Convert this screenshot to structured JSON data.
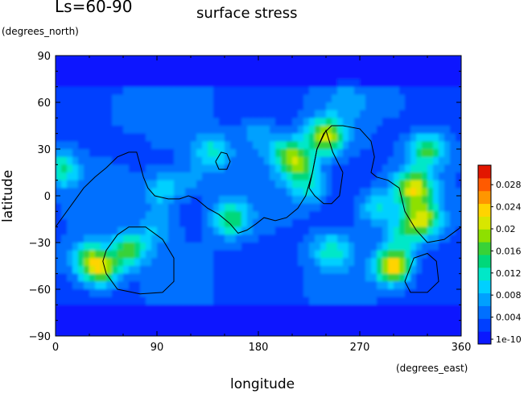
{
  "chart_data": {
    "type": "heatmap",
    "title": "surface stress",
    "period_label": "Ls=60-90",
    "xlabel": "longitude",
    "xunits": "(degrees_east)",
    "ylabel": "latitude",
    "yunits": "(degrees_north)",
    "xlim": [
      0,
      360
    ],
    "ylim": [
      -90,
      90
    ],
    "xticks": [
      0,
      90,
      180,
      270,
      360
    ],
    "yticks": [
      90,
      60,
      30,
      0,
      -30,
      -60,
      -90
    ],
    "colorbar": {
      "ticks": [
        "1e-10",
        "0.004",
        "0.008",
        "0.012",
        "0.016",
        "0.02",
        "0.024",
        "0.028"
      ],
      "range": [
        0,
        0.03
      ],
      "colors": [
        "#0a18ff",
        "#0040ff",
        "#0070ff",
        "#00a0ff",
        "#00d0ff",
        "#00e8c8",
        "#00d87a",
        "#38d238",
        "#8ee000",
        "#d8e600",
        "#ffd400",
        "#ff9600",
        "#ff5a00",
        "#e21600"
      ]
    },
    "background_value": 0.004,
    "hotspots": [
      {
        "lon": 40,
        "lat": -47,
        "value": 0.02
      },
      {
        "lon": 65,
        "lat": -35,
        "value": 0.016
      },
      {
        "lon": 28,
        "lat": -40,
        "value": 0.013
      },
      {
        "lon": 5,
        "lat": 17,
        "value": 0.013
      },
      {
        "lon": 95,
        "lat": 3,
        "value": 0.011
      },
      {
        "lon": 140,
        "lat": 28,
        "value": 0.012
      },
      {
        "lon": 155,
        "lat": -15,
        "value": 0.015
      },
      {
        "lon": 205,
        "lat": 28,
        "value": 0.012
      },
      {
        "lon": 215,
        "lat": 20,
        "value": 0.015
      },
      {
        "lon": 225,
        "lat": 5,
        "value": 0.011
      },
      {
        "lon": 240,
        "lat": 38,
        "value": 0.02
      },
      {
        "lon": 245,
        "lat": -35,
        "value": 0.012
      },
      {
        "lon": 285,
        "lat": -8,
        "value": 0.011
      },
      {
        "lon": 300,
        "lat": -45,
        "value": 0.024
      },
      {
        "lon": 318,
        "lat": 5,
        "value": 0.02
      },
      {
        "lon": 325,
        "lat": -15,
        "value": 0.019
      },
      {
        "lon": 330,
        "lat": 30,
        "value": 0.016
      },
      {
        "lon": 310,
        "lat": -25,
        "value": 0.01
      },
      {
        "lon": 180,
        "lat": 40,
        "value": 0.009
      },
      {
        "lon": 60,
        "lat": 55,
        "value": 0.007
      },
      {
        "lon": 300,
        "lat": 60,
        "value": 0.006
      },
      {
        "lon": 260,
        "lat": 60,
        "value": 0.007
      },
      {
        "lon": 90,
        "lat": -20,
        "value": 0.009
      },
      {
        "lon": 120,
        "lat": 10,
        "value": 0.008
      }
    ],
    "contours": [
      [
        [
          0,
          -20
        ],
        [
          5,
          -15
        ],
        [
          15,
          -5
        ],
        [
          25,
          5
        ],
        [
          35,
          12
        ],
        [
          45,
          18
        ],
        [
          55,
          25
        ],
        [
          65,
          28
        ],
        [
          72,
          28
        ],
        [
          75,
          20
        ],
        [
          78,
          12
        ],
        [
          82,
          5
        ],
        [
          88,
          0
        ],
        [
          100,
          -2
        ],
        [
          110,
          -2
        ],
        [
          118,
          0
        ],
        [
          125,
          -2
        ],
        [
          135,
          -8
        ],
        [
          145,
          -12
        ],
        [
          155,
          -18
        ],
        [
          162,
          -24
        ],
        [
          170,
          -22
        ],
        [
          178,
          -18
        ],
        [
          185,
          -14
        ],
        [
          195,
          -16
        ],
        [
          205,
          -14
        ],
        [
          215,
          -8
        ],
        [
          222,
          0
        ],
        [
          228,
          15
        ],
        [
          232,
          30
        ],
        [
          238,
          40
        ],
        [
          245,
          45
        ],
        [
          255,
          45
        ],
        [
          270,
          43
        ],
        [
          280,
          35
        ],
        [
          283,
          25
        ],
        [
          280,
          15
        ],
        [
          285,
          12
        ],
        [
          295,
          10
        ],
        [
          305,
          5
        ],
        [
          310,
          -10
        ],
        [
          320,
          -22
        ],
        [
          330,
          -30
        ],
        [
          345,
          -28
        ],
        [
          360,
          -20
        ]
      ],
      [
        [
          45,
          -35
        ],
        [
          55,
          -25
        ],
        [
          65,
          -20
        ],
        [
          80,
          -20
        ],
        [
          95,
          -28
        ],
        [
          105,
          -40
        ],
        [
          105,
          -55
        ],
        [
          95,
          -62
        ],
        [
          75,
          -63
        ],
        [
          55,
          -60
        ],
        [
          45,
          -50
        ],
        [
          42,
          -42
        ],
        [
          45,
          -35
        ]
      ],
      [
        [
          142,
          22
        ],
        [
          147,
          28
        ],
        [
          152,
          27
        ],
        [
          155,
          22
        ],
        [
          152,
          17
        ],
        [
          145,
          17
        ],
        [
          142,
          22
        ]
      ],
      [
        [
          310,
          -55
        ],
        [
          318,
          -40
        ],
        [
          330,
          -37
        ],
        [
          338,
          -42
        ],
        [
          340,
          -55
        ],
        [
          330,
          -62
        ],
        [
          315,
          -62
        ],
        [
          310,
          -55
        ]
      ],
      [
        [
          255,
          15
        ],
        [
          246,
          28
        ],
        [
          240,
          42
        ],
        [
          232,
          30
        ],
        [
          228,
          15
        ],
        [
          225,
          5
        ],
        [
          230,
          0
        ],
        [
          238,
          -5
        ],
        [
          245,
          -5
        ],
        [
          252,
          0
        ],
        [
          255,
          15
        ]
      ]
    ]
  }
}
